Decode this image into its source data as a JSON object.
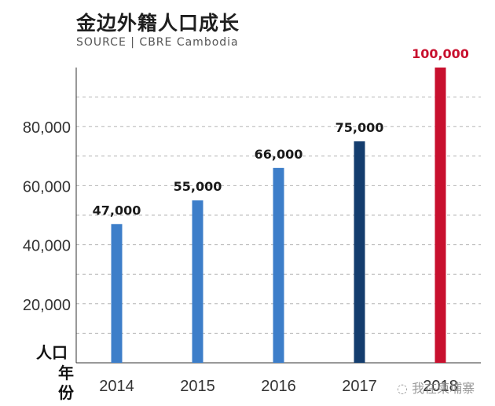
{
  "title": "金边外籍人口成长",
  "source": "SOURCE | CBRE Cambodia",
  "watermark": "我在柬埔寨",
  "chart_data": {
    "type": "bar",
    "categories": [
      "2014",
      "2015",
      "2016",
      "2017",
      "2018"
    ],
    "values": [
      47000,
      55000,
      66000,
      75000,
      100000
    ],
    "value_labels": [
      "47,000",
      "55,000",
      "66,000",
      "75,000",
      "100,000"
    ],
    "bar_colors": [
      "#3d7ec9",
      "#3d7ec9",
      "#3d7ec9",
      "#143d6e",
      "#c8102e"
    ],
    "label_colors": [
      "#1a1a1a",
      "#1a1a1a",
      "#1a1a1a",
      "#1a1a1a",
      "#c8102e"
    ],
    "yticks": [
      20000,
      40000,
      60000,
      80000
    ],
    "ytick_labels": [
      "20,000",
      "40,000",
      "60,000",
      "80,000"
    ],
    "gridlines": [
      10000,
      20000,
      30000,
      40000,
      50000,
      60000,
      70000,
      80000,
      90000
    ],
    "ylim": [
      0,
      100000
    ],
    "ylabel": "人口",
    "xlabel": "年份",
    "grid": "dashed horizontal"
  }
}
